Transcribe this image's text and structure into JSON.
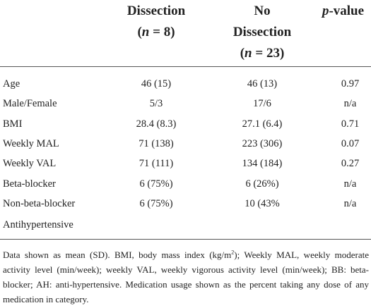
{
  "table": {
    "header": {
      "col1_line1": "Dissection",
      "col1_line2_open": "(",
      "col1_line2_n": "n",
      "col1_line2_eq": " = 8)",
      "col2_line1": "No",
      "col2_line2": "Dissection",
      "col2_line3_open": "(",
      "col2_line3_n": "n",
      "col2_line3_eq": " = 23)",
      "col3_p": "p",
      "col3_rest": "-value"
    },
    "rows": [
      {
        "label": "Age",
        "dissection": "46 (15)",
        "no_dissection": "46 (13)",
        "p_value": "0.97"
      },
      {
        "label": "Male/Female",
        "dissection": "5/3",
        "no_dissection": "17/6",
        "p_value": "n/a"
      },
      {
        "label": "BMI",
        "dissection": "28.4 (8.3)",
        "no_dissection": "27.1 (6.4)",
        "p_value": "0.71"
      },
      {
        "label": "Weekly MAL",
        "dissection": "71 (138)",
        "no_dissection": "223 (306)",
        "p_value": "0.07"
      },
      {
        "label": "Weekly VAL",
        "dissection": "71 (111)",
        "no_dissection": "134 (184)",
        "p_value": "0.27"
      },
      {
        "label": "Beta-blocker",
        "dissection": "6 (75%)",
        "no_dissection": "6 (26%)",
        "p_value": "n/a"
      },
      {
        "label": "Non-beta-blocker",
        "dissection": "6 (75%)",
        "no_dissection": "10 (43%",
        "p_value": "n/a"
      }
    ],
    "continuation_label": "Antihypertensive"
  },
  "footnote": {
    "part1": "Data shown as mean (SD). BMI, body mass index (kg/m",
    "sup": "2",
    "part2": "); Weekly MAL, weekly moderate activity level (min/week); weekly VAL, weekly vigorous activity level (min/week); BB: beta-blocker; AH: anti-hypertensive. Medication usage shown as the percent taking any dose of any medication in category."
  }
}
